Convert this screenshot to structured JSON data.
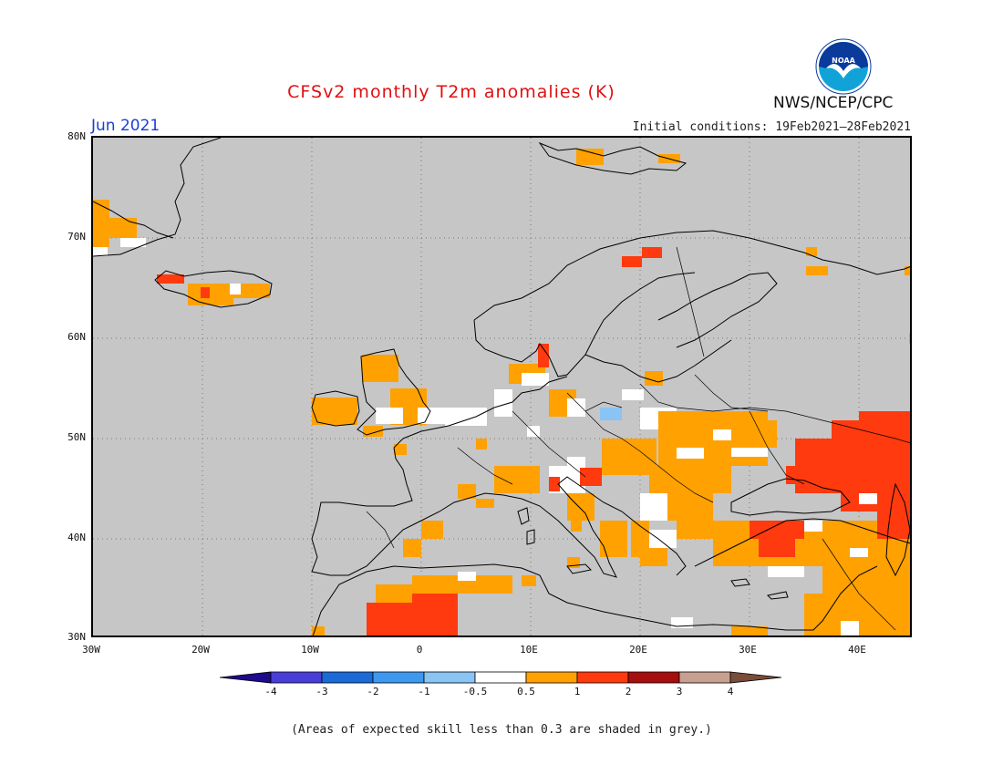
{
  "header": {
    "title": "CFSv2 monthly T2m anomalies (K)",
    "month": "Jun 2021",
    "initial_conditions": "Initial conditions: 19Feb2021—28Feb2021",
    "agency": "NWS/NCEP/CPC",
    "logo_text": "NOAA"
  },
  "map": {
    "lat_labels": [
      "80N",
      "70N",
      "60N",
      "50N",
      "40N",
      "30N"
    ],
    "lon_labels": [
      "30W",
      "20W",
      "10W",
      "0",
      "10E",
      "20E",
      "30E",
      "40E"
    ],
    "background_color": "#c6c6c6",
    "gridlines": "dotted"
  },
  "colorbar": {
    "labels": [
      "-4",
      "-3",
      "-2",
      "-1",
      "-0.5",
      "0.5",
      "1",
      "2",
      "3",
      "4"
    ],
    "colors": [
      "#1e0a8c",
      "#4a3ed8",
      "#1c6ad8",
      "#3d98f0",
      "#8ac4f4",
      "#ffffff",
      "#ffa100",
      "#ff3a0e",
      "#a60d0d",
      "#c8a090",
      "#7a4c3a"
    ]
  },
  "footnote": "(Areas of expected skill less than 0.3 are shaded in grey.)"
}
